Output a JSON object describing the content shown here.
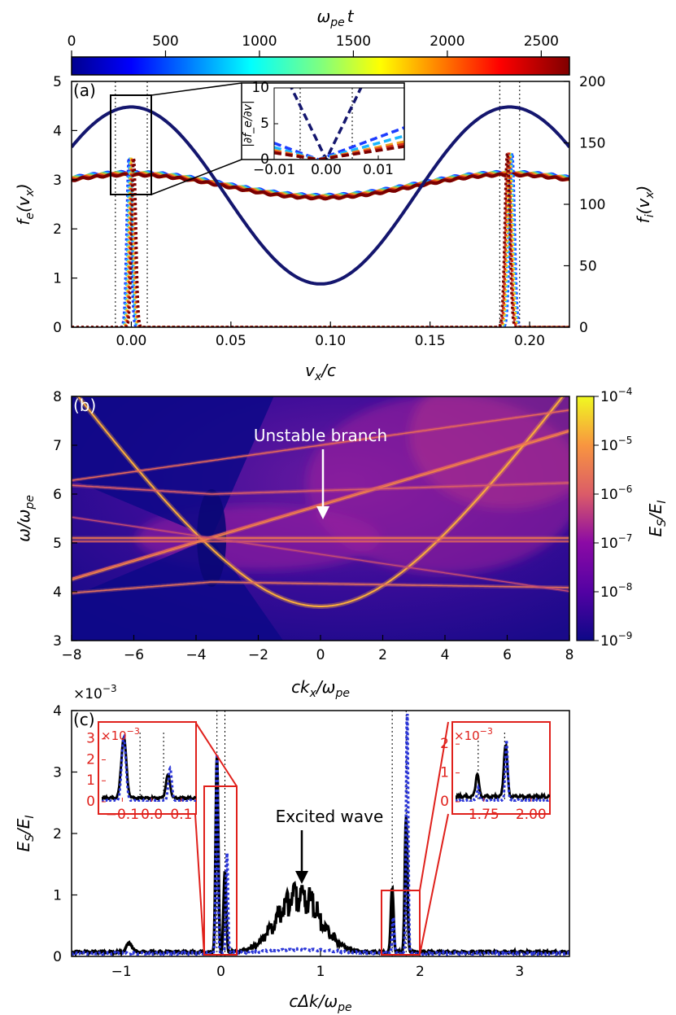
{
  "colors": {
    "accent_red": "#e0201b",
    "dark_navy": "#14166e",
    "inset_blue": "#2a35d8",
    "black": "#000000",
    "white": "#ffffff"
  },
  "colorbar_top": {
    "label": "ω_pe t",
    "label_main": "ω",
    "label_sub": "pe",
    "label_tail": "t",
    "ticks": [
      "0",
      "500",
      "1000",
      "1500",
      "2000",
      "2500"
    ],
    "range": [
      0,
      2650
    ]
  },
  "chart_data": [
    {
      "panel": "a",
      "tag": "(a)",
      "type": "line",
      "xlabel": "v_x/c",
      "ylabel_left": "f_e(v_x)",
      "ylabel_right": "f_i(v_x)",
      "xlim": [
        -0.03,
        0.22
      ],
      "ylim_left": [
        0,
        5
      ],
      "ylim_right": [
        0,
        200
      ],
      "xticks": [
        "0.00",
        "0.05",
        "0.10",
        "0.15",
        "0.20"
      ],
      "yticks_left": [
        "0",
        "1",
        "2",
        "3",
        "4",
        "5"
      ],
      "yticks_right": [
        "0",
        "50",
        "100",
        "150",
        "200"
      ],
      "vlines": [
        -0.008,
        0.008,
        0.185,
        0.195
      ],
      "series": [
        {
          "name": "f_e (t=0)",
          "shape": "cosine",
          "min": 0.88,
          "max": 4.48,
          "center": 0.095,
          "period": 0.19
        },
        {
          "name": "f_e (late times)",
          "shape": "cosine",
          "min": 2.68,
          "max": 3.15,
          "center": 0.095,
          "period": 0.19
        },
        {
          "name": "f_i beams",
          "shape": "peaks",
          "peaks_at": [
            0.0,
            0.19
          ],
          "peak_left_right_axis": 138,
          "peak_right_right_axis": 142
        }
      ],
      "inset": {
        "ylabel": "|∂f_e/∂v|",
        "xlim": [
          -0.01,
          0.015
        ],
        "ylim": [
          0,
          10
        ],
        "xticks": [
          "−0.01",
          "0.00",
          "0.01"
        ],
        "yticks": [
          "0",
          "5",
          "10"
        ],
        "vlines": [
          -0.005,
          0.005
        ]
      }
    },
    {
      "panel": "b",
      "tag": "(b)",
      "type": "heatmap",
      "xlabel": "ck_x/ω_pe",
      "ylabel": "ω/ω_pe",
      "xlim": [
        -8,
        8
      ],
      "ylim": [
        3,
        8
      ],
      "xticks": [
        "−8",
        "−6",
        "−4",
        "−2",
        "0",
        "2",
        "4",
        "6",
        "8"
      ],
      "yticks": [
        "3",
        "4",
        "5",
        "6",
        "7",
        "8"
      ],
      "colorbar_label": "E_S/E_I",
      "colorbar_scale": "log",
      "colorbar_range": [
        1e-09,
        0.0001
      ],
      "colorbar_ticks": [
        "−4",
        "−5",
        "−6",
        "−7",
        "−8",
        "−9"
      ],
      "annotation": "Unstable branch",
      "annotation_target": [
        0,
        5.75
      ],
      "branches": [
        {
          "name": "light wave",
          "relation": "ω² = ω0² + k²",
          "omega0": 3.7
        },
        {
          "name": "plasma line",
          "relation": "ω = 5.1"
        },
        {
          "name": "beam mode",
          "relation": "ω = 5.1 + 0.19 (k + 3.5)"
        },
        {
          "name": "upper hybrid",
          "relation": "ω ≈ 6.0 at k=-4 flattening"
        },
        {
          "name": "lower hybrid",
          "relation": "ω ≈ 4.2 at k=-4 flattening"
        }
      ]
    },
    {
      "panel": "c",
      "tag": "(c)",
      "type": "line",
      "xlabel": "cΔk/ω_pe",
      "ylabel": "E_S/E_I",
      "scale_label": "×10",
      "scale_exp": "−3",
      "xlim": [
        -1.5,
        3.5
      ],
      "ylim": [
        0,
        4
      ],
      "xticks": [
        "−1",
        "0",
        "1",
        "2",
        "3"
      ],
      "yticks": [
        "0",
        "1",
        "2",
        "3",
        "4"
      ],
      "vlines": [
        -0.04,
        0.04,
        1.72,
        1.86
      ],
      "annotation": "Excited wave",
      "annotation_target": [
        0.78,
        1.1
      ],
      "series": [
        {
          "name": "black",
          "style": "solid",
          "features": {
            "broad_peak_center": 0.78,
            "broad_peak_max": 1.15,
            "peak_k": [
              -0.04,
              0.04,
              1.72,
              1.86
            ],
            "peak_v": [
              3.2,
              1.3,
              1.05,
              2.2
            ]
          }
        },
        {
          "name": "blue",
          "style": "dotted",
          "features": {
            "peak_k": [
              -0.04,
              0.06,
              1.73,
              1.87
            ],
            "peak_v": [
              3.25,
              1.65,
              0.6,
              4.0
            ]
          }
        }
      ],
      "inset_left": {
        "scale_label": "×10",
        "scale_exp": "−3",
        "xlim": [
          -0.17,
          0.15
        ],
        "ylim": [
          0,
          3.3
        ],
        "xticks": [
          "−0.1",
          "0.0",
          "0.1"
        ],
        "yticks": [
          "0",
          "1",
          "2",
          "3"
        ]
      },
      "inset_right": {
        "scale_label": "×10",
        "scale_exp": "−3",
        "xlim": [
          1.6,
          2.1
        ],
        "ylim": [
          0,
          2.4
        ],
        "xticks": [
          "1.75",
          "2.00"
        ],
        "yticks": [
          "0",
          "1",
          "2"
        ]
      }
    }
  ]
}
